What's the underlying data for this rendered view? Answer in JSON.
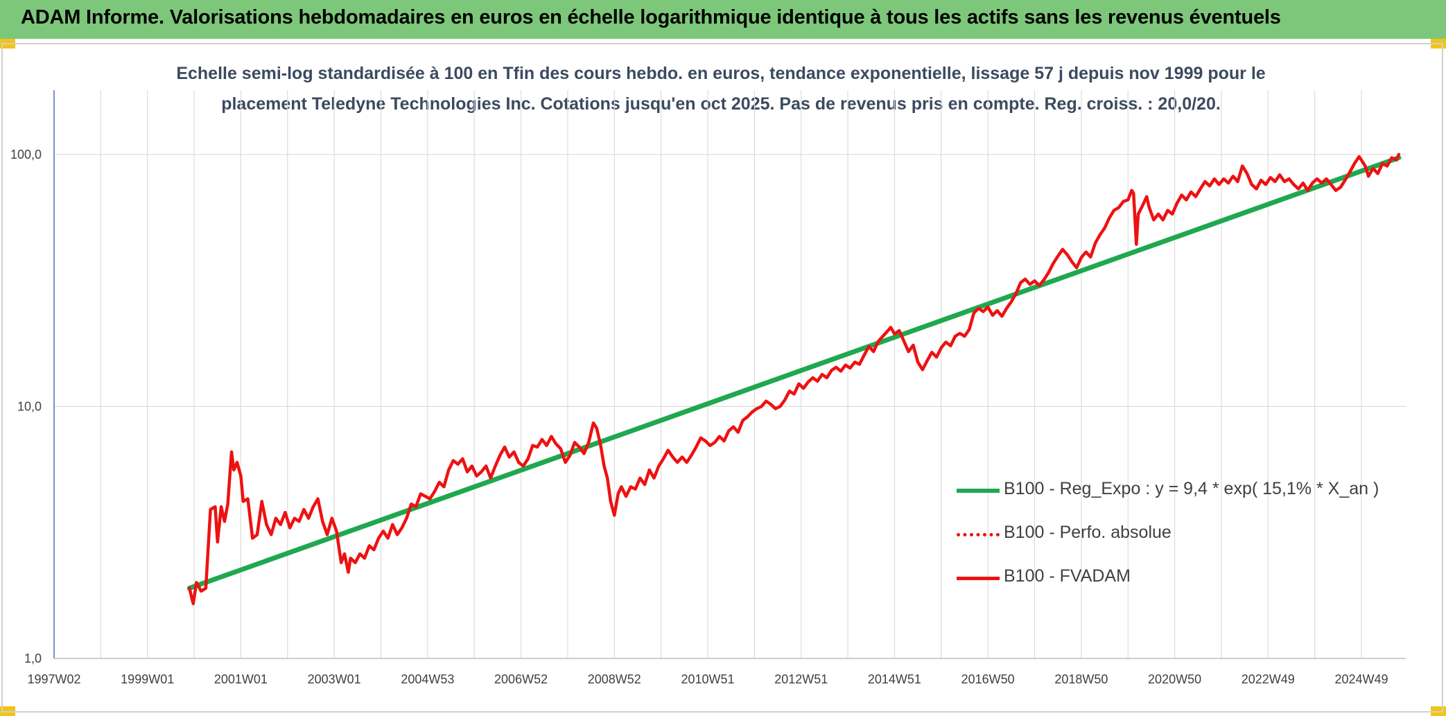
{
  "header": {
    "title": "ADAM Informe. Valorisations hebdomadaires en euros en échelle logarithmique identique à tous les actifs sans les revenus éventuels"
  },
  "colors": {
    "header_bg": "#7dc77a",
    "corner_accent": "#f2c418",
    "trend": "#1fa84f",
    "series": "#ee1111"
  },
  "chart_data": {
    "type": "line",
    "title_line1": "Echelle semi-log standardisée à 100 en Tfin des cours hebdo. en euros, tendance exponentielle, lissage 57 j depuis nov 1999 pour le",
    "title_line2": "placement Teledyne Technologies Inc. Cotations jusqu'en oct 2025. Pas de revenus pris en compte. Reg. croiss. : 20,0/20.",
    "y_scale": "log",
    "ylim": [
      1,
      180
    ],
    "y_ticks": [
      {
        "value": 1,
        "label": "1,0"
      },
      {
        "value": 10,
        "label": "10,0"
      },
      {
        "value": 100,
        "label": "100,0"
      }
    ],
    "xlim": [
      1997.0,
      2025.95
    ],
    "x_ticks": [
      {
        "value": 1997.0,
        "label": "1997W02"
      },
      {
        "value": 1999.0,
        "label": "1999W01"
      },
      {
        "value": 2001.0,
        "label": "2001W01"
      },
      {
        "value": 2003.0,
        "label": "2003W01"
      },
      {
        "value": 2005.0,
        "label": "2004W53"
      },
      {
        "value": 2007.0,
        "label": "2006W52"
      },
      {
        "value": 2009.0,
        "label": "2008W52"
      },
      {
        "value": 2011.0,
        "label": "2010W51"
      },
      {
        "value": 2013.0,
        "label": "2012W51"
      },
      {
        "value": 2015.0,
        "label": "2014W51"
      },
      {
        "value": 2017.0,
        "label": "2016W50"
      },
      {
        "value": 2019.0,
        "label": "2018W50"
      },
      {
        "value": 2021.0,
        "label": "2020W50"
      },
      {
        "value": 2023.0,
        "label": "2022W49"
      },
      {
        "value": 2025.0,
        "label": "2024W49"
      }
    ],
    "grid": true,
    "legend_position": "right",
    "series": [
      {
        "name": "B100 - Reg_Expo : y = 9,4 * exp( 15,1% *  X_an )",
        "style": "solid-thick",
        "points": [
          [
            1999.9,
            1.9
          ],
          [
            2025.8,
            97
          ]
        ]
      },
      {
        "name": "B100 - Perfo. absolue",
        "style": "dotted",
        "points": []
      },
      {
        "name": "B100 - FVADAM",
        "style": "solid",
        "points": [
          [
            1999.9,
            1.9
          ],
          [
            1999.98,
            1.65
          ],
          [
            2000.05,
            2.0
          ],
          [
            2000.15,
            1.85
          ],
          [
            2000.25,
            1.9
          ],
          [
            2000.35,
            3.9
          ],
          [
            2000.45,
            4.0
          ],
          [
            2000.5,
            2.9
          ],
          [
            2000.58,
            4.0
          ],
          [
            2000.65,
            3.5
          ],
          [
            2000.72,
            4.1
          ],
          [
            2000.8,
            6.6
          ],
          [
            2000.85,
            5.6
          ],
          [
            2000.92,
            6.0
          ],
          [
            2001.0,
            5.3
          ],
          [
            2001.05,
            4.2
          ],
          [
            2001.15,
            4.3
          ],
          [
            2001.25,
            3.0
          ],
          [
            2001.35,
            3.1
          ],
          [
            2001.45,
            4.2
          ],
          [
            2001.55,
            3.4
          ],
          [
            2001.65,
            3.1
          ],
          [
            2001.75,
            3.6
          ],
          [
            2001.85,
            3.4
          ],
          [
            2001.95,
            3.8
          ],
          [
            2002.05,
            3.3
          ],
          [
            2002.15,
            3.6
          ],
          [
            2002.25,
            3.5
          ],
          [
            2002.35,
            3.9
          ],
          [
            2002.45,
            3.6
          ],
          [
            2002.55,
            4.0
          ],
          [
            2002.65,
            4.3
          ],
          [
            2002.75,
            3.5
          ],
          [
            2002.85,
            3.1
          ],
          [
            2002.95,
            3.6
          ],
          [
            2003.05,
            3.2
          ],
          [
            2003.15,
            2.4
          ],
          [
            2003.22,
            2.6
          ],
          [
            2003.3,
            2.2
          ],
          [
            2003.35,
            2.5
          ],
          [
            2003.45,
            2.4
          ],
          [
            2003.55,
            2.6
          ],
          [
            2003.65,
            2.5
          ],
          [
            2003.75,
            2.8
          ],
          [
            2003.85,
            2.7
          ],
          [
            2003.95,
            3.0
          ],
          [
            2004.05,
            3.2
          ],
          [
            2004.15,
            3.0
          ],
          [
            2004.25,
            3.4
          ],
          [
            2004.35,
            3.1
          ],
          [
            2004.45,
            3.3
          ],
          [
            2004.55,
            3.6
          ],
          [
            2004.65,
            4.1
          ],
          [
            2004.75,
            4.0
          ],
          [
            2004.85,
            4.5
          ],
          [
            2004.95,
            4.4
          ],
          [
            2005.05,
            4.3
          ],
          [
            2005.15,
            4.6
          ],
          [
            2005.25,
            5.0
          ],
          [
            2005.35,
            4.8
          ],
          [
            2005.45,
            5.6
          ],
          [
            2005.55,
            6.1
          ],
          [
            2005.65,
            5.9
          ],
          [
            2005.75,
            6.2
          ],
          [
            2005.85,
            5.5
          ],
          [
            2005.95,
            5.8
          ],
          [
            2006.05,
            5.3
          ],
          [
            2006.15,
            5.5
          ],
          [
            2006.25,
            5.8
          ],
          [
            2006.35,
            5.2
          ],
          [
            2006.45,
            5.8
          ],
          [
            2006.55,
            6.4
          ],
          [
            2006.65,
            6.9
          ],
          [
            2006.75,
            6.3
          ],
          [
            2006.85,
            6.6
          ],
          [
            2006.95,
            6.0
          ],
          [
            2007.05,
            5.8
          ],
          [
            2007.15,
            6.2
          ],
          [
            2007.25,
            7.0
          ],
          [
            2007.35,
            6.9
          ],
          [
            2007.45,
            7.4
          ],
          [
            2007.55,
            7.0
          ],
          [
            2007.65,
            7.6
          ],
          [
            2007.75,
            7.1
          ],
          [
            2007.85,
            6.8
          ],
          [
            2007.95,
            6.0
          ],
          [
            2008.05,
            6.4
          ],
          [
            2008.15,
            7.2
          ],
          [
            2008.25,
            6.9
          ],
          [
            2008.35,
            6.5
          ],
          [
            2008.45,
            7.2
          ],
          [
            2008.55,
            8.6
          ],
          [
            2008.62,
            8.2
          ],
          [
            2008.7,
            7.1
          ],
          [
            2008.78,
            5.8
          ],
          [
            2008.85,
            5.2
          ],
          [
            2008.92,
            4.2
          ],
          [
            2009.0,
            3.7
          ],
          [
            2009.08,
            4.5
          ],
          [
            2009.15,
            4.8
          ],
          [
            2009.25,
            4.4
          ],
          [
            2009.35,
            4.8
          ],
          [
            2009.45,
            4.7
          ],
          [
            2009.55,
            5.2
          ],
          [
            2009.65,
            4.9
          ],
          [
            2009.75,
            5.6
          ],
          [
            2009.85,
            5.2
          ],
          [
            2009.95,
            5.8
          ],
          [
            2010.05,
            6.2
          ],
          [
            2010.15,
            6.7
          ],
          [
            2010.25,
            6.3
          ],
          [
            2010.35,
            6.0
          ],
          [
            2010.45,
            6.3
          ],
          [
            2010.55,
            6.0
          ],
          [
            2010.65,
            6.4
          ],
          [
            2010.75,
            6.9
          ],
          [
            2010.85,
            7.5
          ],
          [
            2010.95,
            7.3
          ],
          [
            2011.05,
            7.0
          ],
          [
            2011.15,
            7.2
          ],
          [
            2011.25,
            7.6
          ],
          [
            2011.35,
            7.3
          ],
          [
            2011.45,
            8.0
          ],
          [
            2011.55,
            8.3
          ],
          [
            2011.65,
            7.9
          ],
          [
            2011.75,
            8.8
          ],
          [
            2011.85,
            9.1
          ],
          [
            2011.95,
            9.5
          ],
          [
            2012.05,
            9.8
          ],
          [
            2012.15,
            10.0
          ],
          [
            2012.25,
            10.5
          ],
          [
            2012.35,
            10.2
          ],
          [
            2012.45,
            9.8
          ],
          [
            2012.55,
            10.0
          ],
          [
            2012.65,
            10.6
          ],
          [
            2012.75,
            11.5
          ],
          [
            2012.85,
            11.2
          ],
          [
            2012.95,
            12.3
          ],
          [
            2013.05,
            11.8
          ],
          [
            2013.15,
            12.5
          ],
          [
            2013.25,
            13.0
          ],
          [
            2013.35,
            12.6
          ],
          [
            2013.45,
            13.4
          ],
          [
            2013.55,
            13.0
          ],
          [
            2013.65,
            13.9
          ],
          [
            2013.75,
            14.3
          ],
          [
            2013.85,
            13.8
          ],
          [
            2013.95,
            14.6
          ],
          [
            2014.05,
            14.2
          ],
          [
            2014.15,
            15.0
          ],
          [
            2014.25,
            14.7
          ],
          [
            2014.35,
            16.0
          ],
          [
            2014.45,
            17.3
          ],
          [
            2014.55,
            16.5
          ],
          [
            2014.65,
            18.1
          ],
          [
            2014.75,
            19.0
          ],
          [
            2014.85,
            19.9
          ],
          [
            2014.92,
            20.6
          ],
          [
            2015.0,
            19.4
          ],
          [
            2015.1,
            20.0
          ],
          [
            2015.2,
            18.2
          ],
          [
            2015.3,
            16.5
          ],
          [
            2015.4,
            17.5
          ],
          [
            2015.5,
            15.0
          ],
          [
            2015.6,
            14.0
          ],
          [
            2015.7,
            15.2
          ],
          [
            2015.8,
            16.4
          ],
          [
            2015.9,
            15.7
          ],
          [
            2016.0,
            17.1
          ],
          [
            2016.1,
            18.0
          ],
          [
            2016.2,
            17.4
          ],
          [
            2016.3,
            19.0
          ],
          [
            2016.4,
            19.5
          ],
          [
            2016.5,
            19.0
          ],
          [
            2016.6,
            20.2
          ],
          [
            2016.7,
            23.5
          ],
          [
            2016.8,
            24.5
          ],
          [
            2016.9,
            23.8
          ],
          [
            2017.0,
            24.8
          ],
          [
            2017.1,
            23.0
          ],
          [
            2017.2,
            24.0
          ],
          [
            2017.3,
            22.8
          ],
          [
            2017.4,
            24.5
          ],
          [
            2017.5,
            26.0
          ],
          [
            2017.6,
            28.0
          ],
          [
            2017.7,
            31.0
          ],
          [
            2017.8,
            32.0
          ],
          [
            2017.9,
            30.5
          ],
          [
            2018.0,
            31.5
          ],
          [
            2018.1,
            30.2
          ],
          [
            2018.2,
            31.8
          ],
          [
            2018.3,
            34.0
          ],
          [
            2018.4,
            37.0
          ],
          [
            2018.5,
            39.5
          ],
          [
            2018.6,
            42.0
          ],
          [
            2018.7,
            40.0
          ],
          [
            2018.8,
            37.5
          ],
          [
            2018.9,
            35.5
          ],
          [
            2019.0,
            39.0
          ],
          [
            2019.1,
            41.0
          ],
          [
            2019.2,
            39.2
          ],
          [
            2019.3,
            44.5
          ],
          [
            2019.4,
            48.0
          ],
          [
            2019.5,
            51.0
          ],
          [
            2019.6,
            56.0
          ],
          [
            2019.7,
            60.0
          ],
          [
            2019.8,
            61.5
          ],
          [
            2019.9,
            65.0
          ],
          [
            2020.0,
            66.0
          ],
          [
            2020.08,
            72.0
          ],
          [
            2020.12,
            70.0
          ],
          [
            2020.18,
            44.0
          ],
          [
            2020.22,
            58.0
          ],
          [
            2020.3,
            62.0
          ],
          [
            2020.4,
            68.0
          ],
          [
            2020.45,
            62.0
          ],
          [
            2020.55,
            55.0
          ],
          [
            2020.65,
            58.0
          ],
          [
            2020.75,
            55.0
          ],
          [
            2020.85,
            60.0
          ],
          [
            2020.95,
            58.0
          ],
          [
            2021.05,
            64.0
          ],
          [
            2021.15,
            69.0
          ],
          [
            2021.25,
            66.0
          ],
          [
            2021.35,
            71.0
          ],
          [
            2021.45,
            68.0
          ],
          [
            2021.55,
            73.0
          ],
          [
            2021.65,
            78.0
          ],
          [
            2021.75,
            75.0
          ],
          [
            2021.85,
            80.0
          ],
          [
            2021.95,
            76.0
          ],
          [
            2022.05,
            80.0
          ],
          [
            2022.15,
            77.0
          ],
          [
            2022.25,
            82.0
          ],
          [
            2022.35,
            78.0
          ],
          [
            2022.45,
            90.0
          ],
          [
            2022.55,
            84.0
          ],
          [
            2022.65,
            76.0
          ],
          [
            2022.75,
            73.0
          ],
          [
            2022.85,
            79.0
          ],
          [
            2022.95,
            76.0
          ],
          [
            2023.05,
            81.0
          ],
          [
            2023.15,
            78.0
          ],
          [
            2023.25,
            83.0
          ],
          [
            2023.35,
            78.0
          ],
          [
            2023.45,
            80.0
          ],
          [
            2023.55,
            76.0
          ],
          [
            2023.65,
            73.0
          ],
          [
            2023.75,
            77.0
          ],
          [
            2023.85,
            72.0
          ],
          [
            2023.95,
            77.0
          ],
          [
            2024.05,
            80.0
          ],
          [
            2024.15,
            77.0
          ],
          [
            2024.25,
            80.0
          ],
          [
            2024.35,
            76.0
          ],
          [
            2024.45,
            72.0
          ],
          [
            2024.55,
            74.0
          ],
          [
            2024.65,
            79.0
          ],
          [
            2024.75,
            85.0
          ],
          [
            2024.85,
            92.0
          ],
          [
            2024.95,
            98.0
          ],
          [
            2025.0,
            95.0
          ],
          [
            2025.08,
            90.0
          ],
          [
            2025.15,
            82.0
          ],
          [
            2025.25,
            88.0
          ],
          [
            2025.35,
            84.0
          ],
          [
            2025.45,
            92.0
          ],
          [
            2025.55,
            90.0
          ],
          [
            2025.65,
            97.0
          ],
          [
            2025.75,
            95.0
          ],
          [
            2025.8,
            100.0
          ]
        ]
      }
    ]
  }
}
